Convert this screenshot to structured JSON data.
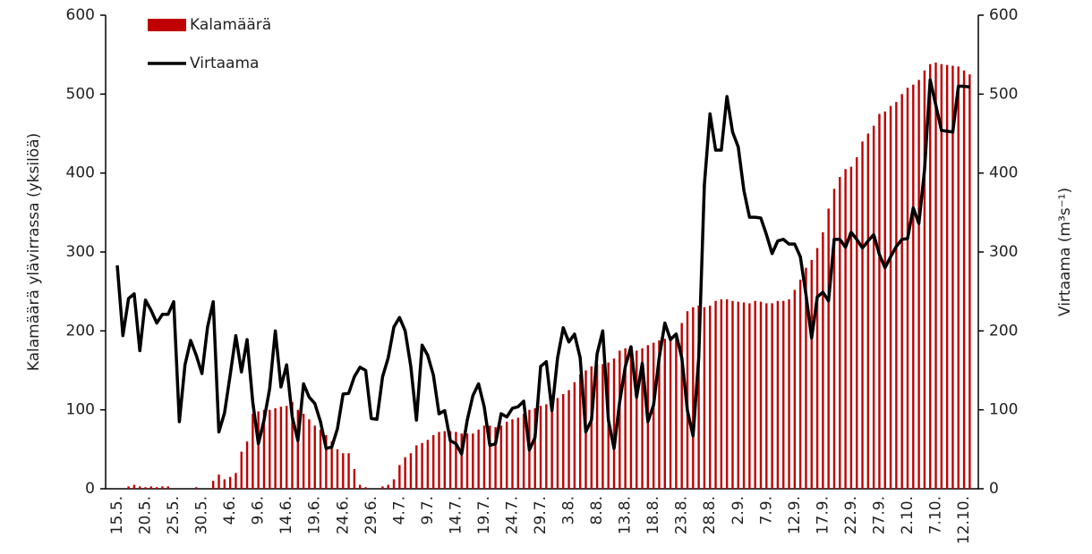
{
  "chart_data": {
    "type": "bar",
    "categories": [
      "15.5.",
      null,
      null,
      null,
      null,
      "20.5.",
      null,
      null,
      null,
      null,
      "25.5.",
      null,
      null,
      null,
      null,
      "30.5.",
      null,
      null,
      null,
      null,
      "4.6.",
      null,
      null,
      null,
      null,
      "9.6.",
      null,
      null,
      null,
      null,
      "14.6.",
      null,
      null,
      null,
      null,
      "19.6.",
      null,
      null,
      null,
      null,
      "24.6.",
      null,
      null,
      null,
      null,
      "29.6.",
      null,
      null,
      null,
      null,
      "4.7.",
      null,
      null,
      null,
      null,
      "9.7.",
      null,
      null,
      null,
      null,
      "14.7.",
      null,
      null,
      null,
      null,
      "19.7.",
      null,
      null,
      null,
      null,
      "24.7.",
      null,
      null,
      null,
      null,
      "29.7.",
      null,
      null,
      null,
      null,
      "3.8.",
      null,
      null,
      null,
      null,
      "8.8.",
      null,
      null,
      null,
      null,
      "13.8.",
      null,
      null,
      null,
      null,
      "18.8.",
      null,
      null,
      null,
      null,
      "23.8.",
      null,
      null,
      null,
      null,
      "28.8.",
      null,
      null,
      null,
      null,
      "2.9.",
      null,
      null,
      null,
      null,
      "7.9.",
      null,
      null,
      null,
      null,
      "12.9.",
      null,
      null,
      null,
      null,
      "17.9.",
      null,
      null,
      null,
      null,
      "22.9.",
      null,
      null,
      null,
      null,
      "27.9.",
      null,
      null,
      null,
      null,
      "2.10.",
      null,
      null,
      null,
      null,
      "7.10.",
      null,
      null,
      null,
      null,
      "12.10.",
      null
    ],
    "series": [
      {
        "name": "Kalamäärä",
        "type": "bar",
        "color": "#c00000",
        "values": [
          0,
          0,
          3,
          5,
          3,
          2,
          3,
          2,
          3,
          3,
          0,
          0,
          0,
          0,
          2,
          0,
          0,
          10,
          18,
          12,
          15,
          20,
          47,
          60,
          95,
          98,
          100,
          100,
          102,
          104,
          105,
          110,
          100,
          95,
          88,
          80,
          75,
          68,
          60,
          50,
          45,
          45,
          25,
          5,
          2,
          0,
          0,
          3,
          5,
          12,
          30,
          40,
          45,
          55,
          58,
          62,
          68,
          72,
          73,
          73,
          72,
          70,
          70,
          70,
          75,
          80,
          80,
          78,
          80,
          85,
          88,
          90,
          95,
          100,
          102,
          105,
          107,
          110,
          115,
          120,
          125,
          135,
          145,
          150,
          155,
          158,
          158,
          160,
          165,
          175,
          178,
          175,
          175,
          178,
          182,
          185,
          188,
          190,
          192,
          195,
          210,
          225,
          230,
          232,
          230,
          232,
          238,
          240,
          240,
          238,
          237,
          236,
          235,
          238,
          237,
          235,
          235,
          238,
          238,
          240,
          252,
          265,
          280,
          290,
          305,
          325,
          355,
          380,
          395,
          405,
          408,
          420,
          440,
          450,
          460,
          475,
          478,
          485,
          490,
          500,
          508,
          512,
          518,
          530,
          538,
          540,
          538,
          537,
          536,
          535,
          530,
          525
        ]
      },
      {
        "name": "Virtaama",
        "type": "line",
        "axis": "y2",
        "color": "#000000",
        "values": [
          283,
          194,
          241,
          247,
          175,
          239,
          226,
          210,
          221,
          221,
          237,
          85,
          157,
          188,
          169,
          146,
          205,
          237,
          72,
          96,
          144,
          194,
          148,
          189,
          110,
          57,
          87,
          127,
          200,
          129,
          157,
          91,
          61,
          133,
          116,
          108,
          85,
          51,
          53,
          76,
          120,
          121,
          142,
          154,
          150,
          89,
          88,
          142,
          166,
          205,
          217,
          200,
          155,
          87,
          182,
          169,
          144,
          95,
          99,
          61,
          57,
          44,
          87,
          118,
          133,
          104,
          55,
          57,
          95,
          91,
          102,
          104,
          111,
          49,
          65,
          155,
          161,
          99,
          166,
          204,
          186,
          196,
          166,
          72,
          87,
          171,
          200,
          87,
          51,
          110,
          155,
          180,
          116,
          159,
          85,
          106,
          166,
          210,
          189,
          196,
          166,
          99,
          67,
          166,
          385,
          475,
          429,
          429,
          497,
          452,
          433,
          378,
          344,
          344,
          343,
          322,
          298,
          314,
          316,
          310,
          310,
          294,
          246,
          191,
          243,
          249,
          238,
          316,
          316,
          306,
          325,
          316,
          305,
          314,
          322,
          297,
          280,
          294,
          307,
          316,
          317,
          356,
          336,
          404,
          518,
          486,
          454,
          453,
          452,
          510,
          510,
          509
        ]
      }
    ],
    "ylabel": "Kalamäärä ylävirrassa (yksilöä)",
    "y2label": "Virtaama (m³s⁻¹)",
    "ylim": [
      0,
      600
    ],
    "yticks": [
      0,
      100,
      200,
      300,
      400,
      500,
      600
    ],
    "y2lim": [
      0,
      600
    ],
    "y2ticks": [
      0,
      100,
      200,
      300,
      400,
      500,
      600
    ],
    "legend": "upper left",
    "grid": false
  }
}
